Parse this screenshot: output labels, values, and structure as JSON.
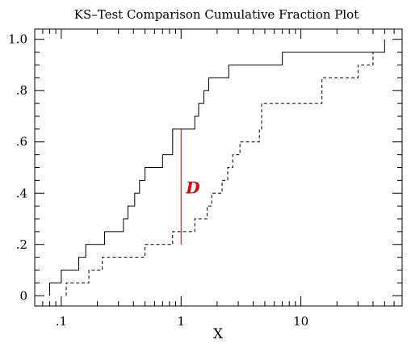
{
  "chart_data": {
    "type": "line",
    "title": "KS–Test Comparison Cumulative Fraction Plot",
    "xlabel": "X",
    "ylabel": "",
    "x_scale": "log",
    "xlim": [
      0.06,
      70
    ],
    "ylim": [
      -0.04,
      1.04
    ],
    "x_ticks": [
      {
        "value": 0.1,
        "label": ".1"
      },
      {
        "value": 1,
        "label": "1"
      },
      {
        "value": 10,
        "label": "10"
      }
    ],
    "y_ticks": [
      {
        "value": 0,
        "label": "0"
      },
      {
        "value": 0.2,
        "label": ".2"
      },
      {
        "value": 0.4,
        "label": ".4"
      },
      {
        "value": 0.6,
        "label": ".6"
      },
      {
        "value": 0.8,
        "label": ".8"
      },
      {
        "value": 1.0,
        "label": "1.0"
      }
    ],
    "grid": false,
    "series": [
      {
        "style": "solid",
        "color": "#000000",
        "x": [
          0.08,
          0.1,
          0.14,
          0.16,
          0.23,
          0.33,
          0.36,
          0.41,
          0.45,
          0.5,
          0.7,
          0.85,
          1.3,
          1.4,
          1.55,
          1.7,
          2.5,
          7,
          50
        ],
        "y": [
          0.05,
          0.1,
          0.15,
          0.2,
          0.25,
          0.3,
          0.35,
          0.4,
          0.45,
          0.5,
          0.55,
          0.65,
          0.7,
          0.75,
          0.8,
          0.85,
          0.9,
          0.95,
          1.0
        ]
      },
      {
        "style": "dashed",
        "color": "#000000",
        "x": [
          0.11,
          0.17,
          0.22,
          0.5,
          0.85,
          1.3,
          1.65,
          1.8,
          2.2,
          2.45,
          2.7,
          3.1,
          4.5,
          4.7,
          15,
          30,
          40
        ],
        "y": [
          0.05,
          0.1,
          0.15,
          0.2,
          0.25,
          0.3,
          0.35,
          0.4,
          0.45,
          0.5,
          0.55,
          0.6,
          0.65,
          0.75,
          0.85,
          0.9,
          0.95
        ]
      }
    ],
    "annotation": {
      "label": "D",
      "color": "#dd0000",
      "x": 1.0,
      "y_low": 0.2,
      "y_high": 0.65
    }
  }
}
